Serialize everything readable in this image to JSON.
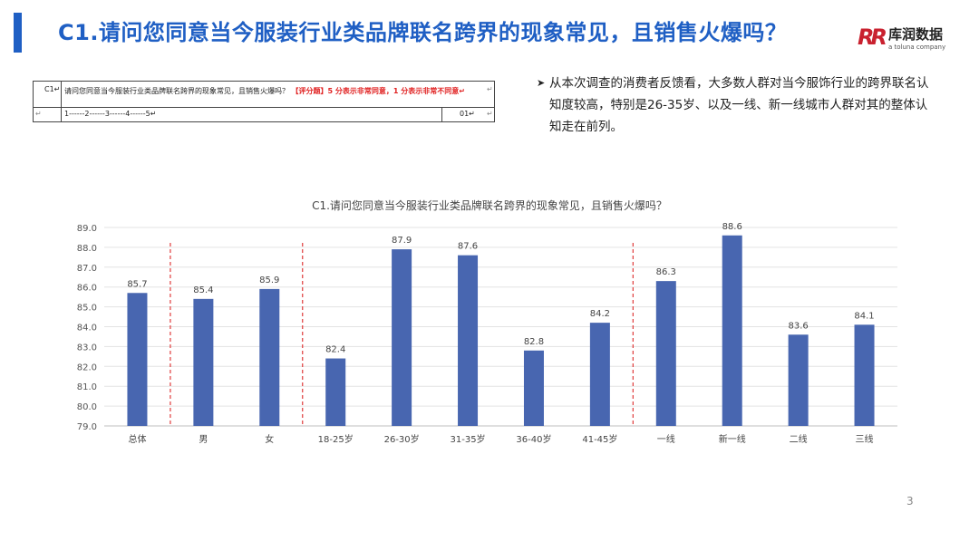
{
  "header": {
    "title": "C1.请问您同意当今服装行业类品牌联名跨界的现象常见，且销售火爆吗？",
    "logo": {
      "mark": "RR",
      "name": "库润数据",
      "sub": "a toluna company"
    }
  },
  "question_table": {
    "id": "C1↵",
    "text": "请问您同意当今服装行业类品牌联名跨界的现象常见，且销售火爆吗？",
    "rating_note": "【评分题】5 分表示非常同意，1 分表示非常不同意↵",
    "scale": "1------2------3------4------5↵",
    "code": "01↵",
    "mark": "↵"
  },
  "insight": {
    "bullet": "➤",
    "text": "从本次调查的消费者反馈看，大多数人群对当今服饰行业的跨界联名认知度较高，特别是26-35岁、以及一线、新一线城市人群对其的整体认知走在前列。"
  },
  "chart_data": {
    "type": "bar",
    "title": "C1.请问您同意当今服装行业类品牌联名跨界的现象常见，且销售火爆吗？",
    "categories": [
      "总体",
      "男",
      "女",
      "18-25岁",
      "26-30岁",
      "31-35岁",
      "36-40岁",
      "41-45岁",
      "一线",
      "新一线",
      "二线",
      "三线"
    ],
    "values": [
      85.7,
      85.4,
      85.9,
      82.4,
      87.9,
      87.6,
      82.8,
      84.2,
      86.3,
      88.6,
      83.6,
      84.1
    ],
    "value_labels": [
      "85.7",
      "85.4",
      "85.9",
      "82.4",
      "87.9",
      "87.6",
      "82.8",
      "84.2",
      "86.3",
      "88.6",
      "83.6",
      "84.1"
    ],
    "ylim": [
      79,
      89
    ],
    "y_ticks": [
      "79.0",
      "80.0",
      "81.0",
      "82.0",
      "83.0",
      "84.0",
      "85.0",
      "86.0",
      "87.0",
      "88.0",
      "89.0"
    ],
    "group_separators_after": [
      "总体",
      "女",
      "41-45岁"
    ],
    "bar_color": "#4866b0",
    "separator_color": "#e03a3a",
    "grid": true,
    "legend": "none"
  },
  "footer": {
    "page_number": "3"
  }
}
